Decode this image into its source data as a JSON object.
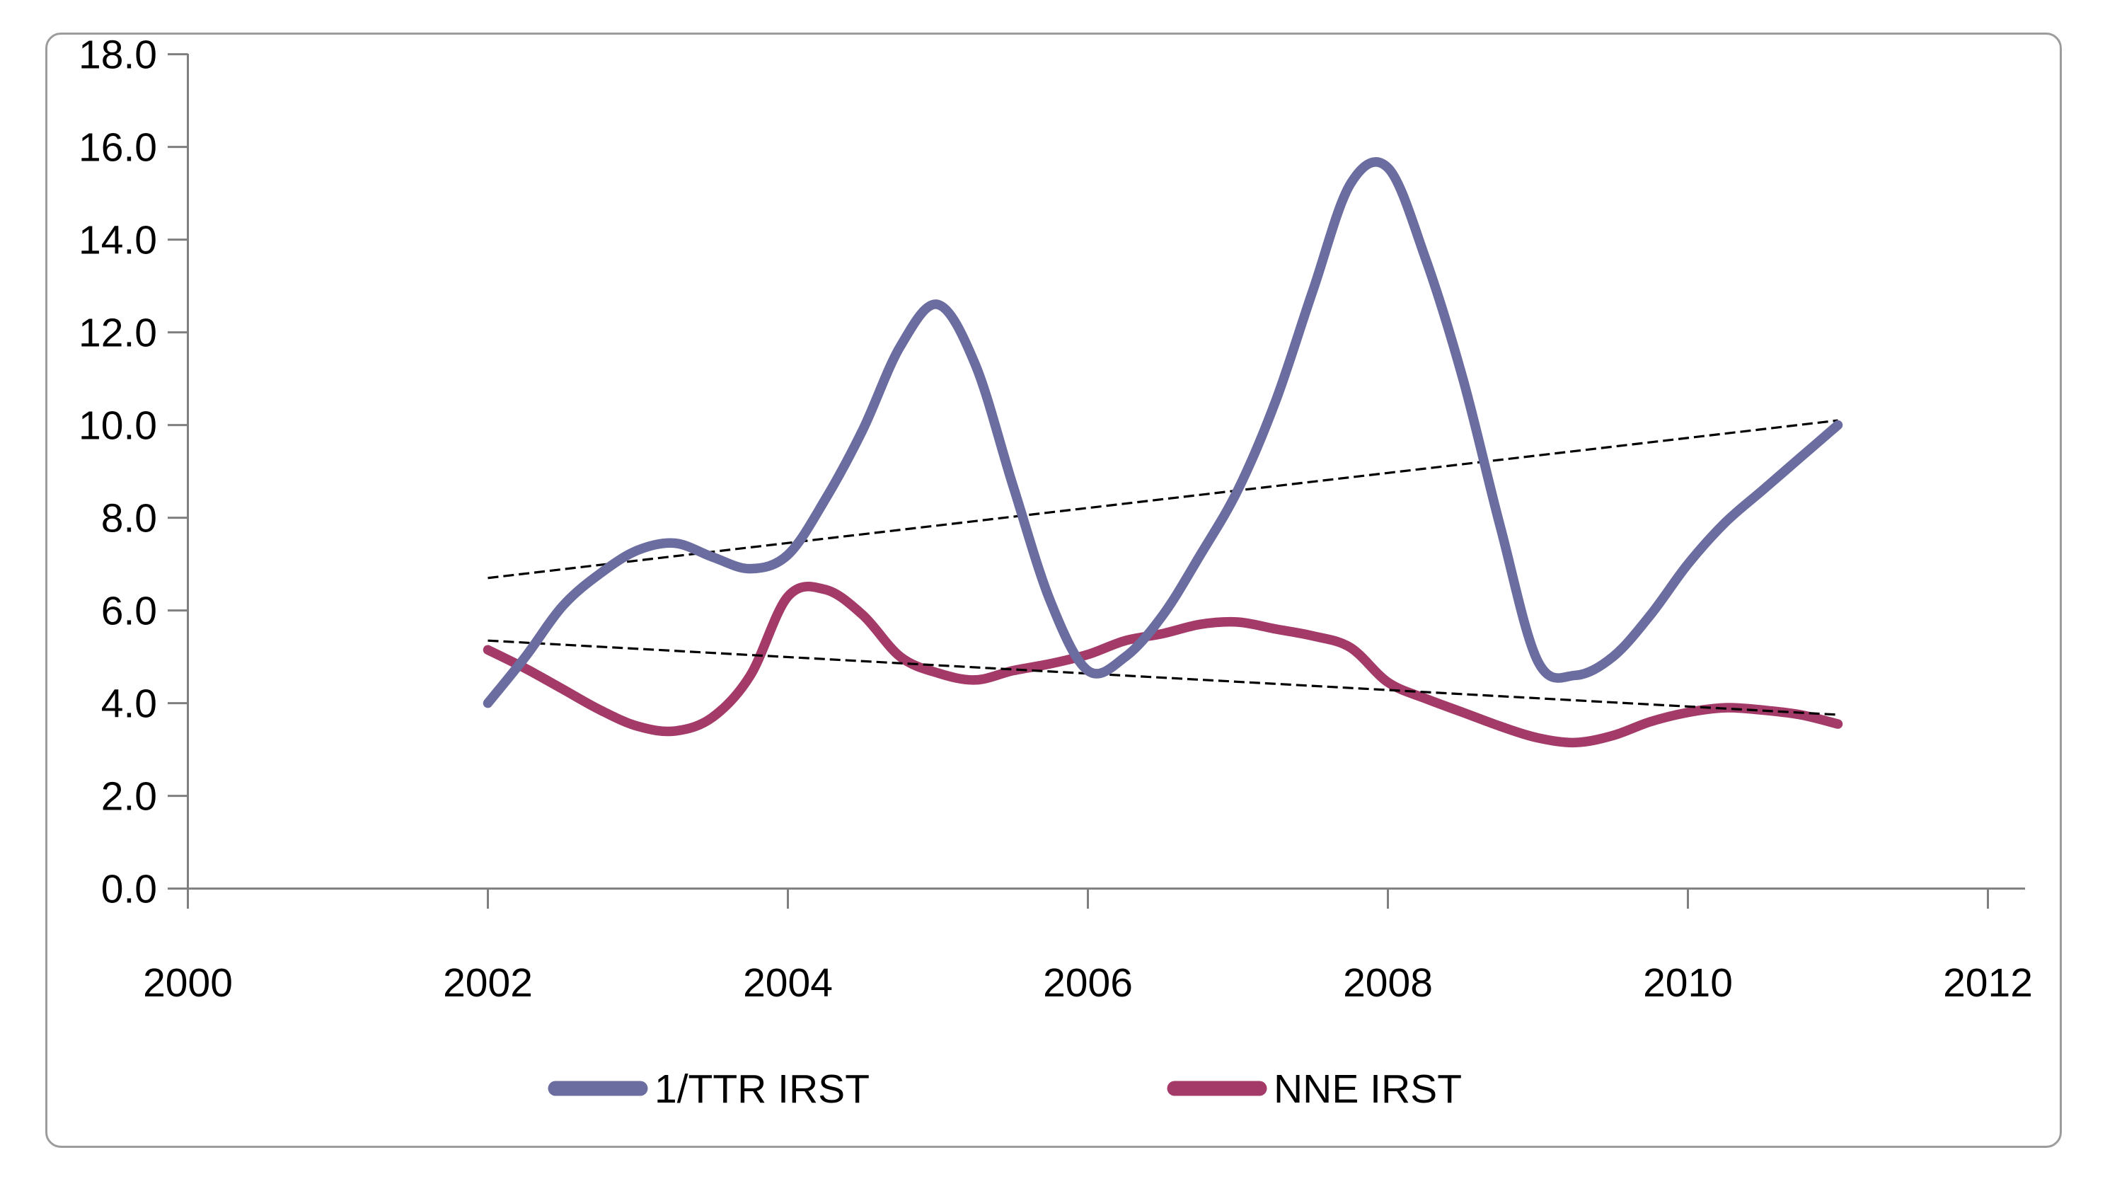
{
  "chart_data": {
    "type": "line",
    "title": "",
    "x_axis": {
      "min": 2000,
      "max": 2012,
      "tick_step": 2,
      "tick_labels": [
        "2000",
        "2002",
        "2004",
        "2006",
        "2008",
        "2010",
        "2012"
      ]
    },
    "y_axis": {
      "min": 0,
      "max": 18,
      "tick_step": 2,
      "tick_labels": [
        "0.0",
        "2.0",
        "4.0",
        "6.0",
        "8.0",
        "10.0",
        "12.0",
        "14.0",
        "16.0",
        "18.0"
      ]
    },
    "grid": false,
    "legend_position": "bottom",
    "series": [
      {
        "name": "1/TTR IRST",
        "color": "#6B6C9F",
        "x_start": 2002,
        "x_step": 0.25,
        "values": [
          4.0,
          5.0,
          6.1,
          6.8,
          7.3,
          7.45,
          7.15,
          6.9,
          7.2,
          8.4,
          9.9,
          11.7,
          12.6,
          11.3,
          8.7,
          6.2,
          4.7,
          5.0,
          5.9,
          7.2,
          8.6,
          10.5,
          12.9,
          15.2,
          15.55,
          13.6,
          11.0,
          7.8,
          4.9,
          4.6,
          5.0,
          5.9,
          7.0,
          7.9,
          8.6,
          9.3,
          10.0
        ]
      },
      {
        "name": "NNE IRST",
        "color": "#A33A67",
        "x_start": 2002,
        "x_step": 0.25,
        "values": [
          5.15,
          4.75,
          4.3,
          3.85,
          3.5,
          3.4,
          3.7,
          4.6,
          6.3,
          6.45,
          5.9,
          5.0,
          4.65,
          4.5,
          4.7,
          4.85,
          5.05,
          5.35,
          5.5,
          5.7,
          5.75,
          5.6,
          5.45,
          5.2,
          4.45,
          4.1,
          3.8,
          3.5,
          3.25,
          3.15,
          3.3,
          3.6,
          3.8,
          3.9,
          3.85,
          3.75,
          3.55
        ]
      }
    ],
    "trendlines": [
      {
        "for_series": "1/TTR IRST",
        "color": "#000000",
        "style": "dashed",
        "x1": 2002,
        "y1": 6.7,
        "x2": 2011,
        "y2": 10.1
      },
      {
        "for_series": "NNE IRST",
        "color": "#000000",
        "style": "dashed",
        "x1": 2002,
        "y1": 5.35,
        "x2": 2011,
        "y2": 3.75
      }
    ],
    "legend": {
      "entries": [
        {
          "label": "1/TTR IRST",
          "color": "#6B6C9F"
        },
        {
          "label": "NNE IRST",
          "color": "#A33A67"
        }
      ]
    },
    "axis_color": "#7F7F7F",
    "text_color": "#000000",
    "frame_border_color": "#9C9C9C",
    "background": "#FFFFFF"
  }
}
